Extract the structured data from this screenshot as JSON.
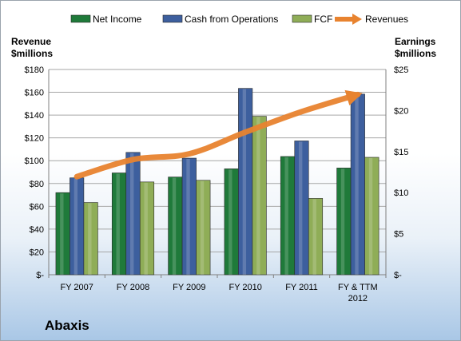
{
  "company": "Abaxis",
  "colors": {
    "net_income": "#1f7a3a",
    "cash_from_operations": "#3d5f9e",
    "fcf": "#8fad57",
    "revenues": "#e8832f"
  },
  "chart_data": {
    "type": "bar",
    "categories": [
      "FY 2007",
      "FY 2008",
      "FY 2009",
      "FY 2010",
      "FY 2011",
      "FY & TTM\n2012"
    ],
    "series": [
      {
        "name": "Net Income",
        "axis": "right",
        "values": [
          10.0,
          12.4,
          11.9,
          12.9,
          14.4,
          13.0
        ]
      },
      {
        "name": "Cash from Operations",
        "axis": "right",
        "values": [
          11.8,
          14.9,
          14.2,
          22.7,
          16.3,
          22.0
        ]
      },
      {
        "name": "FCF",
        "axis": "right",
        "values": [
          8.8,
          11.3,
          11.5,
          19.3,
          9.3,
          14.3
        ]
      }
    ],
    "line_series": {
      "name": "Revenues",
      "axis": "left",
      "values": [
        86,
        101,
        106,
        125,
        143,
        158
      ]
    },
    "left_axis": {
      "title": "Revenue\n$millions",
      "ylim": [
        0,
        180
      ],
      "step": 20,
      "tick_labels": [
        "$-",
        "$20",
        "$40",
        "$60",
        "$80",
        "$100",
        "$120",
        "$140",
        "$160",
        "$180"
      ]
    },
    "right_axis": {
      "title": "Earnings\n$millions",
      "ylim": [
        0,
        25
      ],
      "step": 5,
      "tick_labels": [
        "$-",
        "$5",
        "$10",
        "$15",
        "$20",
        "$25"
      ]
    },
    "grid": true,
    "legend_position": "top"
  }
}
